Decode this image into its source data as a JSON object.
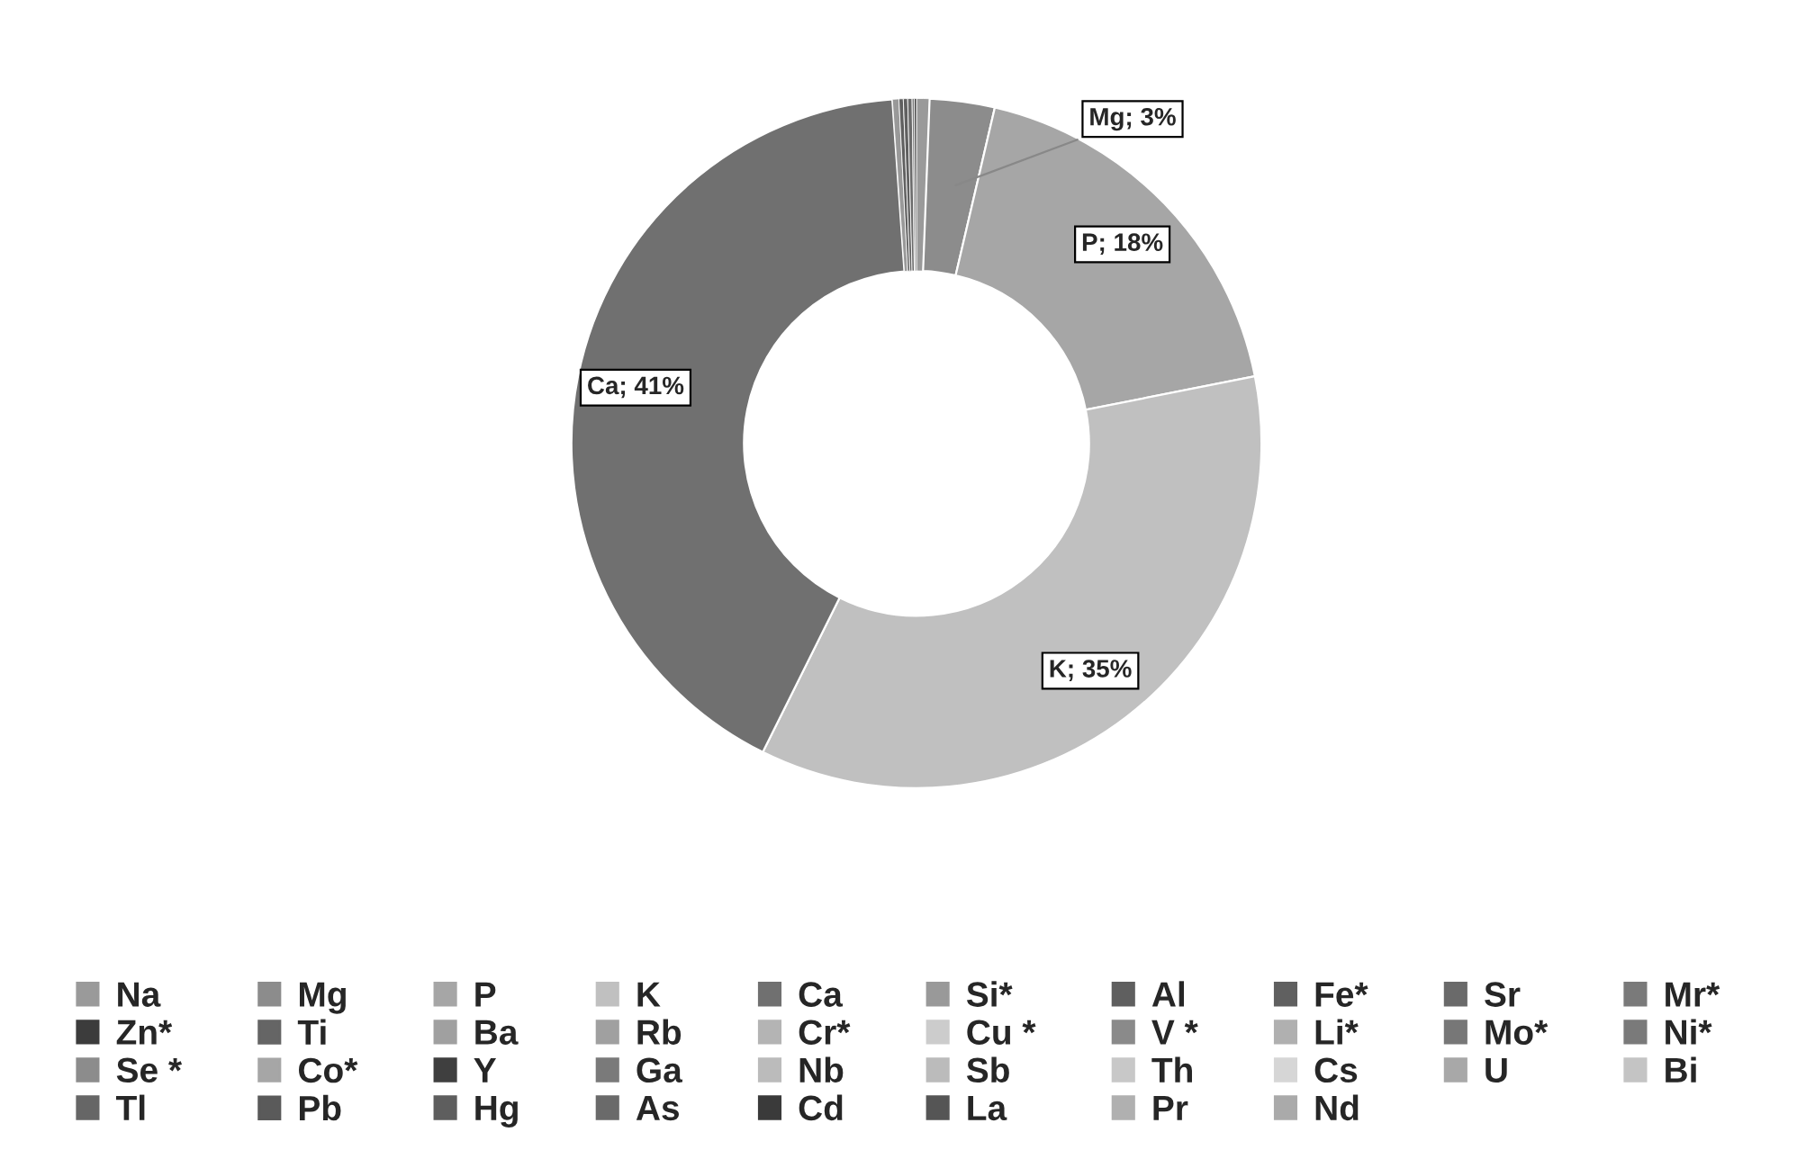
{
  "chart_data": {
    "type": "donut",
    "categories": [
      "Na",
      "Mg",
      "P",
      "K",
      "Ca",
      "Si*",
      "Al",
      "Fe*",
      "Sr",
      "Mr*",
      "Zn*",
      "Ti",
      "Ba",
      "Rb",
      "Cr*",
      "Cu *",
      "V *",
      "Li*",
      "Mo*",
      "Ni*",
      "Se *",
      "Co*",
      "Y",
      "Ga",
      "Nb",
      "Sb",
      "Th",
      "Cs",
      "U",
      "Bi",
      "Tl",
      "Pb",
      "Hg",
      "As",
      "Cd",
      "La",
      "Pr",
      "Nd"
    ],
    "values": [
      0.6,
      3,
      18,
      35,
      41,
      0.3,
      0.2,
      0.2,
      0.2,
      0.1,
      0.1,
      null,
      null,
      null,
      null,
      null,
      null,
      null,
      null,
      null,
      null,
      null,
      null,
      null,
      null,
      null,
      null,
      null,
      null,
      null,
      null,
      null,
      null,
      null,
      null,
      null,
      null,
      null
    ],
    "value_labels": [
      null,
      "Mg; 3%",
      "P; 18%",
      "K; 35%",
      "Ca; 41%",
      null,
      null,
      null,
      null,
      null,
      null,
      null,
      null,
      null,
      null,
      null,
      null,
      null,
      null,
      null,
      null,
      null,
      null,
      null,
      null,
      null,
      null,
      null,
      null,
      null,
      null,
      null,
      null,
      null,
      null,
      null,
      null,
      null
    ],
    "colors": [
      "#9a9a9a",
      "#8c8c8c",
      "#a6a6a6",
      "#c0c0c0",
      "#707070",
      "#999999",
      "#5f5f5f",
      "#606060",
      "#6a6a6a",
      "#7a7a7a",
      "#3c3c3c",
      "#656565",
      "#a0a0a0",
      "#a0a0a0",
      "#b4b4b4",
      "#cccccc",
      "#8a8a8a",
      "#b0b0b0",
      "#777777",
      "#7a7a7a",
      "#8c8c8c",
      "#a6a6a6",
      "#3f3f3f",
      "#7a7a7a",
      "#bbbbbb",
      "#bbbbbb",
      "#c8c8c8",
      "#d6d6d6",
      "#a8a8a8",
      "#c4c4c4",
      "#666666",
      "#5a5a5a",
      "#5e5e5e",
      "#6a6a6a",
      "#3a3a3a",
      "#555555",
      "#b0b0b0",
      "#aaaaaa"
    ],
    "legend": "bottom"
  }
}
